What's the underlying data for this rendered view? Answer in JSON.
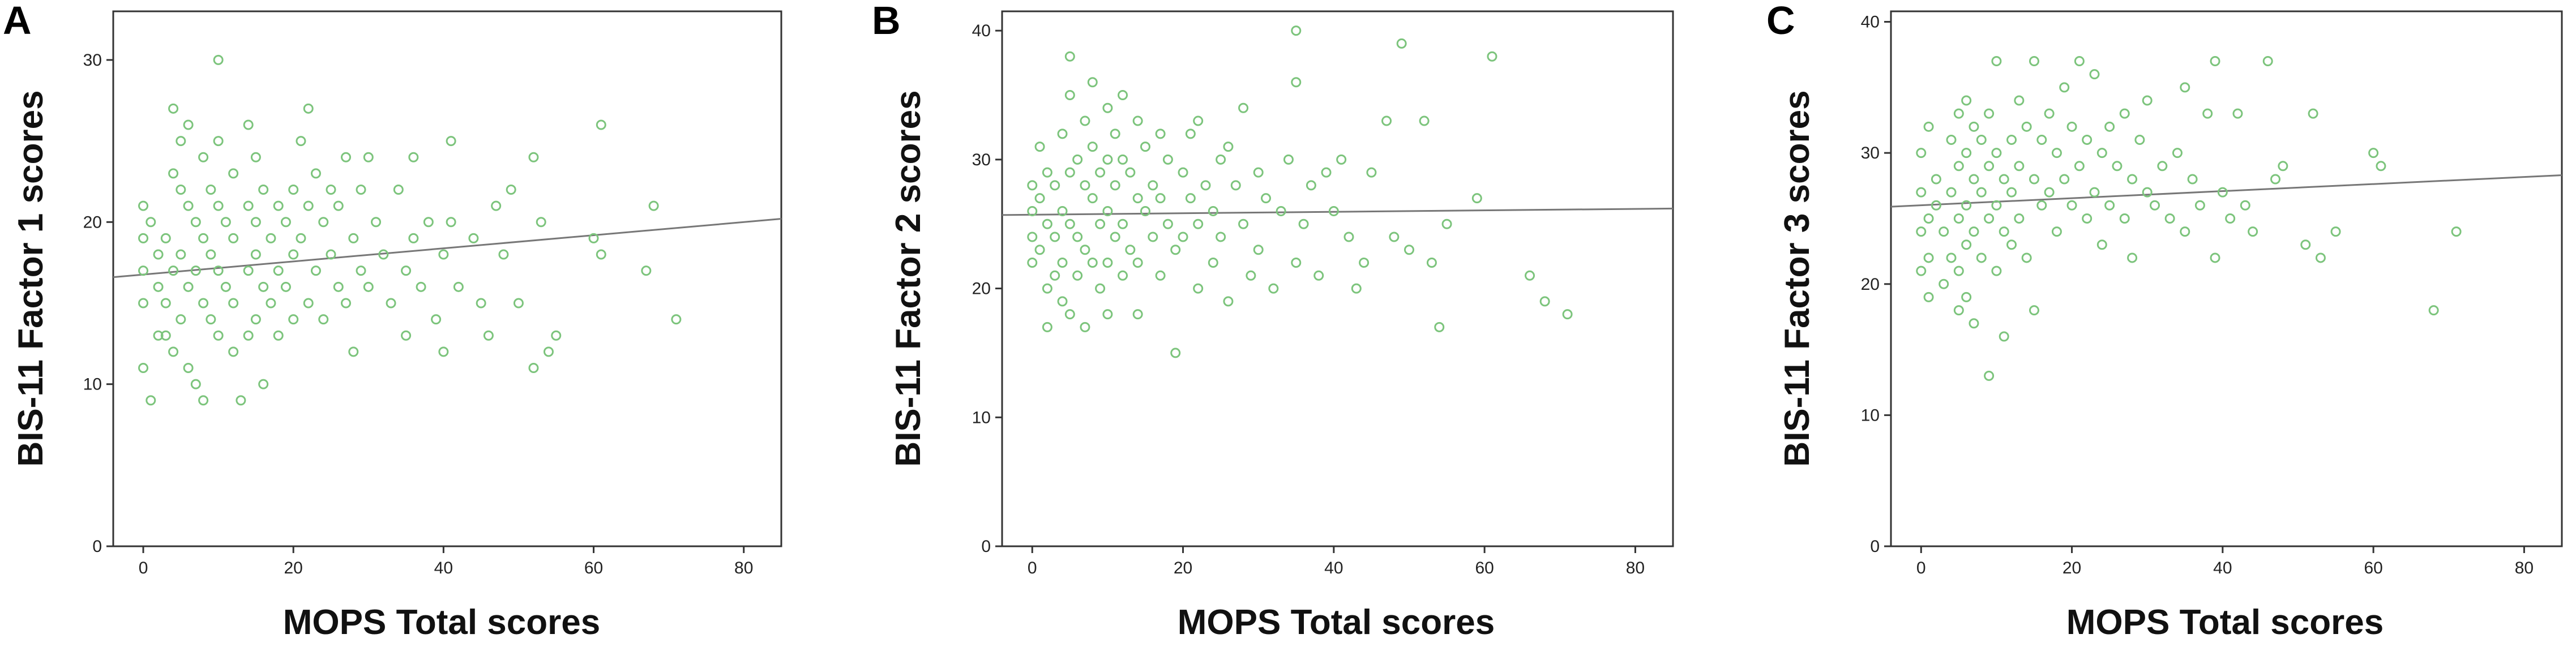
{
  "chart_data": [
    {
      "type": "scatter",
      "panel_label": "A",
      "xlabel": "MOPS Total scores",
      "ylabel": "BIS-11 Factor 1 scores",
      "xlim": [
        -4,
        85
      ],
      "ylim": [
        0,
        33
      ],
      "xticks": [
        0,
        20,
        40,
        60,
        80
      ],
      "yticks": [
        0,
        10,
        20,
        30
      ],
      "point_color": "#7cc47c",
      "fit_line": {
        "x": [
          -4,
          85
        ],
        "y": [
          16.6,
          20.2
        ]
      },
      "points": [
        [
          0,
          21
        ],
        [
          0,
          19
        ],
        [
          0,
          17
        ],
        [
          0,
          15
        ],
        [
          0,
          11
        ],
        [
          1,
          20
        ],
        [
          1,
          9
        ],
        [
          2,
          18
        ],
        [
          2,
          16
        ],
        [
          2,
          13
        ],
        [
          3,
          19
        ],
        [
          3,
          15
        ],
        [
          3,
          13
        ],
        [
          4,
          27
        ],
        [
          4,
          23
        ],
        [
          4,
          17
        ],
        [
          4,
          12
        ],
        [
          5,
          25
        ],
        [
          5,
          22
        ],
        [
          5,
          18
        ],
        [
          5,
          14
        ],
        [
          6,
          26
        ],
        [
          6,
          21
        ],
        [
          6,
          16
        ],
        [
          6,
          11
        ],
        [
          7,
          20
        ],
        [
          7,
          17
        ],
        [
          7,
          10
        ],
        [
          8,
          24
        ],
        [
          8,
          19
        ],
        [
          8,
          15
        ],
        [
          8,
          9
        ],
        [
          9,
          22
        ],
        [
          9,
          18
        ],
        [
          9,
          14
        ],
        [
          10,
          30
        ],
        [
          10,
          25
        ],
        [
          10,
          21
        ],
        [
          10,
          17
        ],
        [
          10,
          13
        ],
        [
          11,
          20
        ],
        [
          11,
          16
        ],
        [
          12,
          23
        ],
        [
          12,
          19
        ],
        [
          12,
          15
        ],
        [
          12,
          12
        ],
        [
          13,
          9
        ],
        [
          14,
          26
        ],
        [
          14,
          21
        ],
        [
          14,
          17
        ],
        [
          14,
          13
        ],
        [
          15,
          24
        ],
        [
          15,
          20
        ],
        [
          15,
          18
        ],
        [
          15,
          14
        ],
        [
          16,
          22
        ],
        [
          16,
          16
        ],
        [
          16,
          10
        ],
        [
          17,
          19
        ],
        [
          17,
          15
        ],
        [
          18,
          21
        ],
        [
          18,
          17
        ],
        [
          18,
          13
        ],
        [
          19,
          20
        ],
        [
          19,
          16
        ],
        [
          20,
          22
        ],
        [
          20,
          18
        ],
        [
          20,
          14
        ],
        [
          21,
          25
        ],
        [
          21,
          19
        ],
        [
          22,
          27
        ],
        [
          22,
          21
        ],
        [
          22,
          15
        ],
        [
          23,
          23
        ],
        [
          23,
          17
        ],
        [
          24,
          20
        ],
        [
          24,
          14
        ],
        [
          25,
          22
        ],
        [
          25,
          18
        ],
        [
          26,
          21
        ],
        [
          26,
          16
        ],
        [
          27,
          24
        ],
        [
          27,
          15
        ],
        [
          28,
          19
        ],
        [
          28,
          12
        ],
        [
          29,
          22
        ],
        [
          29,
          17
        ],
        [
          30,
          24
        ],
        [
          30,
          16
        ],
        [
          31,
          20
        ],
        [
          32,
          18
        ],
        [
          33,
          15
        ],
        [
          34,
          22
        ],
        [
          35,
          17
        ],
        [
          35,
          13
        ],
        [
          36,
          24
        ],
        [
          36,
          19
        ],
        [
          37,
          16
        ],
        [
          38,
          20
        ],
        [
          39,
          14
        ],
        [
          40,
          18
        ],
        [
          40,
          12
        ],
        [
          41,
          25
        ],
        [
          41,
          20
        ],
        [
          42,
          16
        ],
        [
          44,
          19
        ],
        [
          45,
          15
        ],
        [
          46,
          13
        ],
        [
          47,
          21
        ],
        [
          48,
          18
        ],
        [
          49,
          22
        ],
        [
          50,
          15
        ],
        [
          52,
          24
        ],
        [
          52,
          11
        ],
        [
          53,
          20
        ],
        [
          54,
          12
        ],
        [
          55,
          13
        ],
        [
          60,
          19
        ],
        [
          61,
          26
        ],
        [
          61,
          18
        ],
        [
          67,
          17
        ],
        [
          68,
          21
        ],
        [
          71,
          14
        ]
      ]
    },
    {
      "type": "scatter",
      "panel_label": "B",
      "xlabel": "MOPS Total scores",
      "ylabel": "BIS-11 Factor 2 scores",
      "xlim": [
        -4,
        85
      ],
      "ylim": [
        0,
        41.5
      ],
      "xticks": [
        0,
        20,
        40,
        60,
        80
      ],
      "yticks": [
        0,
        10,
        20,
        30,
        40
      ],
      "point_color": "#7cc47c",
      "fit_line": {
        "x": [
          -4,
          85
        ],
        "y": [
          25.7,
          26.2
        ]
      },
      "points": [
        [
          0,
          28
        ],
        [
          0,
          26
        ],
        [
          0,
          24
        ],
        [
          0,
          22
        ],
        [
          1,
          31
        ],
        [
          1,
          27
        ],
        [
          1,
          23
        ],
        [
          2,
          29
        ],
        [
          2,
          25
        ],
        [
          2,
          20
        ],
        [
          2,
          17
        ],
        [
          3,
          28
        ],
        [
          3,
          24
        ],
        [
          3,
          21
        ],
        [
          4,
          32
        ],
        [
          4,
          26
        ],
        [
          4,
          22
        ],
        [
          4,
          19
        ],
        [
          5,
          38
        ],
        [
          5,
          35
        ],
        [
          5,
          29
        ],
        [
          5,
          25
        ],
        [
          5,
          18
        ],
        [
          6,
          30
        ],
        [
          6,
          24
        ],
        [
          6,
          21
        ],
        [
          7,
          33
        ],
        [
          7,
          28
        ],
        [
          7,
          23
        ],
        [
          7,
          17
        ],
        [
          8,
          36
        ],
        [
          8,
          31
        ],
        [
          8,
          27
        ],
        [
          8,
          22
        ],
        [
          9,
          29
        ],
        [
          9,
          25
        ],
        [
          9,
          20
        ],
        [
          10,
          34
        ],
        [
          10,
          30
        ],
        [
          10,
          26
        ],
        [
          10,
          22
        ],
        [
          10,
          18
        ],
        [
          11,
          32
        ],
        [
          11,
          28
        ],
        [
          11,
          24
        ],
        [
          12,
          35
        ],
        [
          12,
          30
        ],
        [
          12,
          25
        ],
        [
          12,
          21
        ],
        [
          13,
          29
        ],
        [
          13,
          23
        ],
        [
          14,
          33
        ],
        [
          14,
          27
        ],
        [
          14,
          22
        ],
        [
          14,
          18
        ],
        [
          15,
          31
        ],
        [
          15,
          26
        ],
        [
          16,
          28
        ],
        [
          16,
          24
        ],
        [
          17,
          32
        ],
        [
          17,
          27
        ],
        [
          17,
          21
        ],
        [
          18,
          30
        ],
        [
          18,
          25
        ],
        [
          19,
          15
        ],
        [
          19,
          23
        ],
        [
          20,
          29
        ],
        [
          20,
          24
        ],
        [
          21,
          32
        ],
        [
          21,
          27
        ],
        [
          22,
          33
        ],
        [
          22,
          25
        ],
        [
          22,
          20
        ],
        [
          23,
          28
        ],
        [
          24,
          26
        ],
        [
          24,
          22
        ],
        [
          25,
          30
        ],
        [
          25,
          24
        ],
        [
          26,
          31
        ],
        [
          26,
          19
        ],
        [
          27,
          28
        ],
        [
          28,
          34
        ],
        [
          28,
          25
        ],
        [
          29,
          21
        ],
        [
          30,
          29
        ],
        [
          30,
          23
        ],
        [
          31,
          27
        ],
        [
          32,
          20
        ],
        [
          33,
          26
        ],
        [
          34,
          30
        ],
        [
          35,
          36
        ],
        [
          35,
          40
        ],
        [
          35,
          22
        ],
        [
          36,
          25
        ],
        [
          37,
          28
        ],
        [
          38,
          21
        ],
        [
          39,
          29
        ],
        [
          40,
          26
        ],
        [
          41,
          30
        ],
        [
          42,
          24
        ],
        [
          43,
          20
        ],
        [
          44,
          22
        ],
        [
          45,
          29
        ],
        [
          47,
          33
        ],
        [
          48,
          24
        ],
        [
          49,
          39
        ],
        [
          50,
          23
        ],
        [
          52,
          33
        ],
        [
          53,
          22
        ],
        [
          54,
          17
        ],
        [
          55,
          25
        ],
        [
          59,
          27
        ],
        [
          61,
          38
        ],
        [
          66,
          21
        ],
        [
          68,
          19
        ],
        [
          71,
          18
        ]
      ]
    },
    {
      "type": "scatter",
      "panel_label": "C",
      "xlabel": "MOPS Total scores",
      "ylabel": "BIS-11 Factor 3 scores",
      "xlim": [
        -4,
        85
      ],
      "ylim": [
        0,
        40.8
      ],
      "xticks": [
        0,
        20,
        40,
        60,
        80
      ],
      "yticks": [
        0,
        10,
        20,
        30,
        40
      ],
      "point_color": "#7cc47c",
      "fit_line": {
        "x": [
          -4,
          85
        ],
        "y": [
          25.9,
          28.3
        ]
      },
      "points": [
        [
          0,
          30
        ],
        [
          0,
          27
        ],
        [
          0,
          24
        ],
        [
          0,
          21
        ],
        [
          1,
          32
        ],
        [
          1,
          25
        ],
        [
          1,
          22
        ],
        [
          1,
          19
        ],
        [
          2,
          28
        ],
        [
          2,
          26
        ],
        [
          3,
          24
        ],
        [
          3,
          20
        ],
        [
          4,
          31
        ],
        [
          4,
          27
        ],
        [
          4,
          22
        ],
        [
          5,
          33
        ],
        [
          5,
          29
        ],
        [
          5,
          25
        ],
        [
          5,
          21
        ],
        [
          5,
          18
        ],
        [
          6,
          34
        ],
        [
          6,
          30
        ],
        [
          6,
          26
        ],
        [
          6,
          23
        ],
        [
          6,
          19
        ],
        [
          7,
          32
        ],
        [
          7,
          28
        ],
        [
          7,
          24
        ],
        [
          7,
          17
        ],
        [
          8,
          31
        ],
        [
          8,
          27
        ],
        [
          8,
          22
        ],
        [
          9,
          33
        ],
        [
          9,
          29
        ],
        [
          9,
          25
        ],
        [
          9,
          13
        ],
        [
          10,
          37
        ],
        [
          10,
          30
        ],
        [
          10,
          26
        ],
        [
          10,
          21
        ],
        [
          11,
          28
        ],
        [
          11,
          24
        ],
        [
          11,
          16
        ],
        [
          12,
          31
        ],
        [
          12,
          27
        ],
        [
          12,
          23
        ],
        [
          13,
          34
        ],
        [
          13,
          29
        ],
        [
          13,
          25
        ],
        [
          14,
          32
        ],
        [
          14,
          22
        ],
        [
          15,
          37
        ],
        [
          15,
          28
        ],
        [
          15,
          18
        ],
        [
          16,
          31
        ],
        [
          16,
          26
        ],
        [
          17,
          33
        ],
        [
          17,
          27
        ],
        [
          18,
          30
        ],
        [
          18,
          24
        ],
        [
          19,
          35
        ],
        [
          19,
          28
        ],
        [
          20,
          32
        ],
        [
          20,
          26
        ],
        [
          21,
          37
        ],
        [
          21,
          29
        ],
        [
          22,
          31
        ],
        [
          22,
          25
        ],
        [
          23,
          36
        ],
        [
          23,
          27
        ],
        [
          24,
          30
        ],
        [
          24,
          23
        ],
        [
          25,
          32
        ],
        [
          25,
          26
        ],
        [
          26,
          29
        ],
        [
          27,
          33
        ],
        [
          27,
          25
        ],
        [
          28,
          28
        ],
        [
          28,
          22
        ],
        [
          29,
          31
        ],
        [
          30,
          34
        ],
        [
          30,
          27
        ],
        [
          31,
          26
        ],
        [
          32,
          29
        ],
        [
          33,
          25
        ],
        [
          34,
          30
        ],
        [
          35,
          35
        ],
        [
          35,
          24
        ],
        [
          36,
          28
        ],
        [
          37,
          26
        ],
        [
          38,
          33
        ],
        [
          39,
          37
        ],
        [
          39,
          22
        ],
        [
          40,
          27
        ],
        [
          41,
          25
        ],
        [
          42,
          33
        ],
        [
          43,
          26
        ],
        [
          44,
          24
        ],
        [
          46,
          37
        ],
        [
          47,
          28
        ],
        [
          48,
          29
        ],
        [
          51,
          23
        ],
        [
          52,
          33
        ],
        [
          53,
          22
        ],
        [
          55,
          24
        ],
        [
          60,
          30
        ],
        [
          61,
          29
        ],
        [
          68,
          18
        ],
        [
          71,
          24
        ]
      ]
    }
  ]
}
